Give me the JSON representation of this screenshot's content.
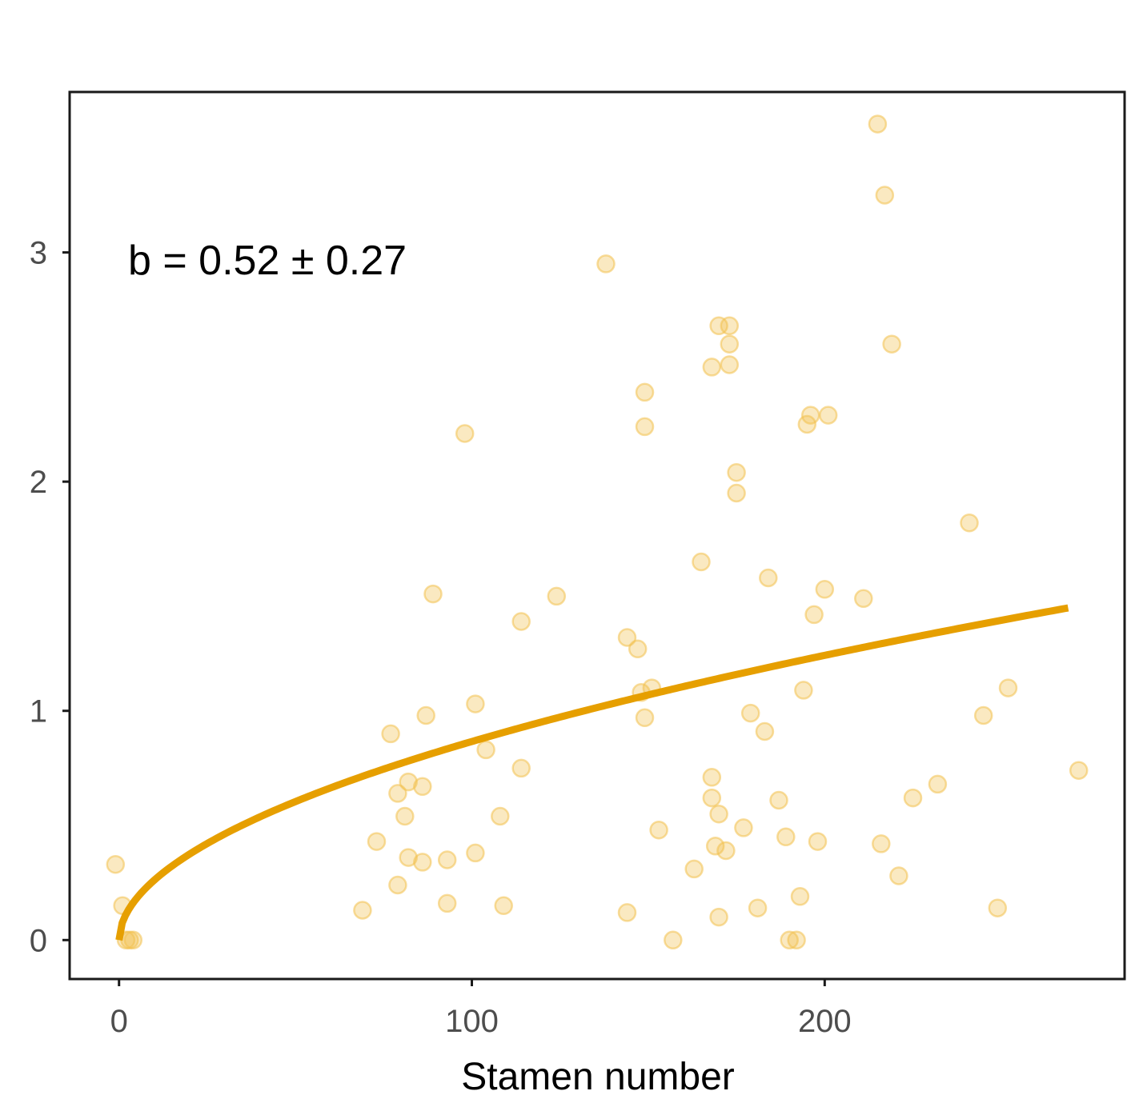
{
  "chart_data": {
    "type": "scatter",
    "title": "",
    "xlabel": "Stamen number",
    "ylabel": "",
    "xlim": [
      -14,
      285
    ],
    "ylim": [
      -0.17,
      3.7
    ],
    "x_ticks": [
      0,
      100,
      200
    ],
    "x_tick_labels": [
      "0",
      "100",
      "200"
    ],
    "y_ticks": [
      0,
      1,
      2,
      3
    ],
    "y_tick_labels": [
      "0",
      "1",
      "2",
      "3"
    ],
    "grid": false,
    "annotation": "b = 0.52 ± 0.27",
    "point_color": "#f2c14e",
    "line_color": "#e69f00",
    "fit": {
      "type": "power",
      "a": 0.079,
      "b": 0.52,
      "x_range": [
        0,
        269
      ]
    },
    "points": [
      [
        -1,
        0.33
      ],
      [
        1,
        0.15
      ],
      [
        2,
        0
      ],
      [
        3,
        0
      ],
      [
        4,
        0
      ],
      [
        69,
        0.13
      ],
      [
        73,
        0.43
      ],
      [
        77,
        0.9
      ],
      [
        79,
        0.64
      ],
      [
        79,
        0.24
      ],
      [
        81,
        0.54
      ],
      [
        82,
        0.36
      ],
      [
        82,
        0.69
      ],
      [
        86,
        0.34
      ],
      [
        86,
        0.67
      ],
      [
        87,
        0.98
      ],
      [
        89,
        1.51
      ],
      [
        93,
        0.16
      ],
      [
        93,
        0.35
      ],
      [
        98,
        2.21
      ],
      [
        101,
        0.38
      ],
      [
        101,
        1.03
      ],
      [
        104,
        0.83
      ],
      [
        108,
        0.54
      ],
      [
        109,
        0.15
      ],
      [
        114,
        1.39
      ],
      [
        114,
        0.75
      ],
      [
        124,
        1.5
      ],
      [
        138,
        2.95
      ],
      [
        144,
        0.12
      ],
      [
        144,
        1.32
      ],
      [
        147,
        1.27
      ],
      [
        148,
        1.08
      ],
      [
        149,
        2.39
      ],
      [
        149,
        2.24
      ],
      [
        149,
        0.97
      ],
      [
        151,
        1.1
      ],
      [
        153,
        0.48
      ],
      [
        157,
        0
      ],
      [
        163,
        0.31
      ],
      [
        165,
        1.65
      ],
      [
        168,
        0.71
      ],
      [
        168,
        0.62
      ],
      [
        168,
        2.5
      ],
      [
        169,
        0.41
      ],
      [
        170,
        2.68
      ],
      [
        170,
        0.55
      ],
      [
        170,
        0.1
      ],
      [
        172,
        0.39
      ],
      [
        173,
        2.68
      ],
      [
        173,
        2.6
      ],
      [
        173,
        2.51
      ],
      [
        175,
        2.04
      ],
      [
        175,
        1.95
      ],
      [
        177,
        0.49
      ],
      [
        179,
        0.99
      ],
      [
        181,
        0.14
      ],
      [
        183,
        0.91
      ],
      [
        184,
        1.58
      ],
      [
        187,
        0.61
      ],
      [
        189,
        0.45
      ],
      [
        190,
        0
      ],
      [
        192,
        0
      ],
      [
        193,
        0.19
      ],
      [
        194,
        1.09
      ],
      [
        195,
        2.25
      ],
      [
        196,
        2.29
      ],
      [
        197,
        1.42
      ],
      [
        198,
        0.43
      ],
      [
        200,
        1.53
      ],
      [
        201,
        2.29
      ],
      [
        211,
        1.49
      ],
      [
        215,
        3.56
      ],
      [
        216,
        0.42
      ],
      [
        217,
        3.25
      ],
      [
        219,
        2.6
      ],
      [
        221,
        0.28
      ],
      [
        225,
        0.62
      ],
      [
        232,
        0.68
      ],
      [
        241,
        1.82
      ],
      [
        245,
        0.98
      ],
      [
        249,
        0.14
      ],
      [
        252,
        1.1
      ],
      [
        272,
        0.74
      ]
    ]
  }
}
